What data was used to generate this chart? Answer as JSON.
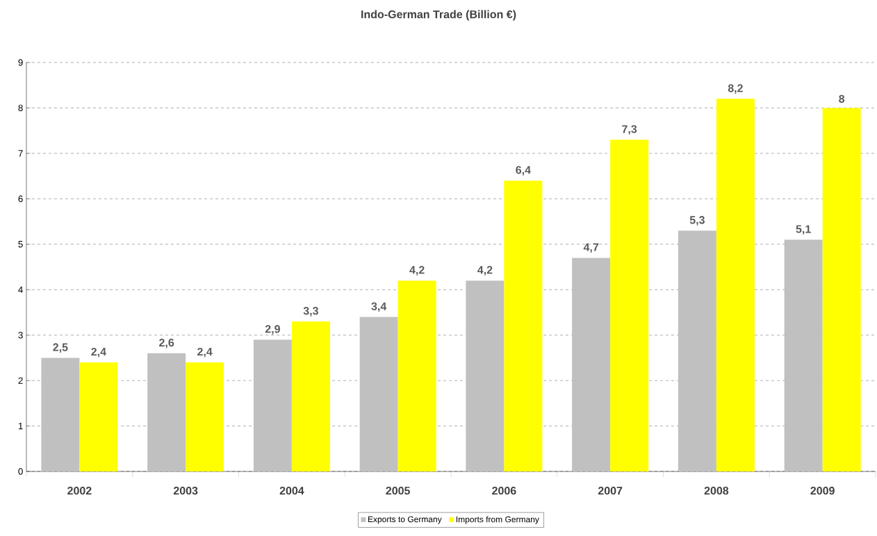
{
  "chart_data": {
    "type": "bar",
    "title": "Indo-German Trade (Billion €)",
    "categories": [
      "2002",
      "2003",
      "2004",
      "2005",
      "2006",
      "2007",
      "2008",
      "2009"
    ],
    "series": [
      {
        "name": "Exports to Germany",
        "color": "#c0c0c0",
        "values": [
          2.5,
          2.6,
          2.9,
          3.4,
          4.2,
          4.7,
          5.3,
          5.1
        ],
        "value_labels": [
          "2,5",
          "2,6",
          "2,9",
          "3,4",
          "4,2",
          "4,7",
          "5,3",
          "5,1"
        ]
      },
      {
        "name": "Imports from Germany",
        "color": "#ffff00",
        "values": [
          2.4,
          2.4,
          3.3,
          4.2,
          6.4,
          7.3,
          8.2,
          8
        ],
        "value_labels": [
          "2,4",
          "2,4",
          "3,3",
          "4,2",
          "6,4",
          "7,3",
          "8,2",
          "8"
        ]
      }
    ],
    "ylim": [
      0,
      9
    ],
    "yticks": [
      0,
      1,
      2,
      3,
      4,
      5,
      6,
      7,
      8,
      9
    ],
    "grid": "y",
    "legend": "bottom"
  }
}
